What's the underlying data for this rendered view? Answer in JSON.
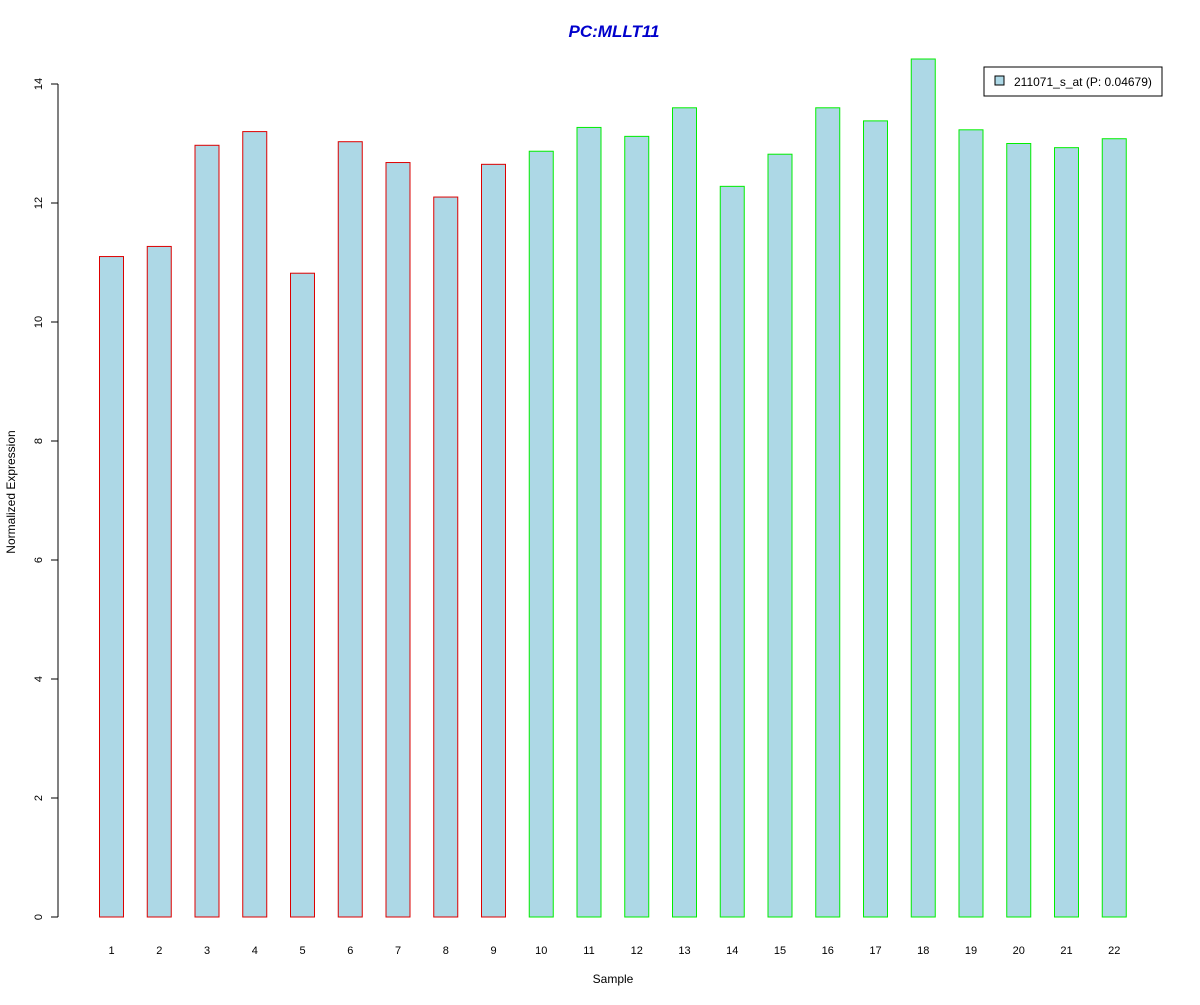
{
  "chart_data": {
    "type": "bar",
    "title": "PC:MLLT11",
    "xlabel": "Sample",
    "ylabel": "Normalized Expression",
    "categories": [
      "1",
      "2",
      "3",
      "4",
      "5",
      "6",
      "7",
      "8",
      "9",
      "10",
      "11",
      "12",
      "13",
      "14",
      "15",
      "16",
      "17",
      "18",
      "19",
      "20",
      "21",
      "22"
    ],
    "series": [
      {
        "name": "211071_s_at (P: 0.04679)",
        "values": [
          11.1,
          11.27,
          12.97,
          13.2,
          10.82,
          13.03,
          12.68,
          12.1,
          12.65,
          12.87,
          13.27,
          13.12,
          13.6,
          12.28,
          12.82,
          13.6,
          13.38,
          14.42,
          13.23,
          13.0,
          12.93,
          13.08
        ]
      }
    ],
    "groups": [
      1,
      1,
      1,
      1,
      1,
      1,
      1,
      1,
      1,
      2,
      2,
      2,
      2,
      2,
      2,
      2,
      2,
      2,
      2,
      2,
      2,
      2
    ],
    "ylim": [
      0,
      14
    ],
    "yticks": [
      0,
      2,
      4,
      6,
      8,
      10,
      12,
      14
    ],
    "grid": false,
    "legend_position": "top-right",
    "colors": {
      "title": "#0000cc",
      "bar_fill": "#add8e6",
      "group1_border": "#dd0000",
      "group2_border": "#00ee00",
      "axis": "#000000"
    }
  }
}
